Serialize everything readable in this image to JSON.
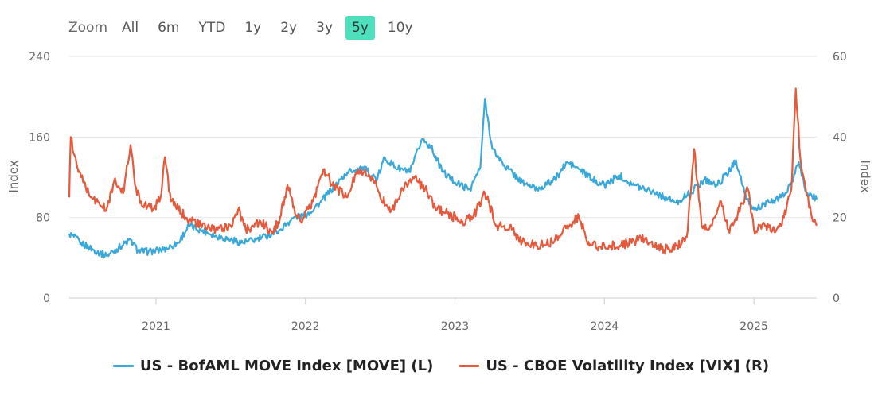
{
  "zoom": {
    "label": "Zoom",
    "buttons": [
      {
        "label": "All",
        "active": false
      },
      {
        "label": "6m",
        "active": false
      },
      {
        "label": "YTD",
        "active": false
      },
      {
        "label": "1y",
        "active": false
      },
      {
        "label": "2y",
        "active": false
      },
      {
        "label": "3y",
        "active": false
      },
      {
        "label": "5y",
        "active": true
      },
      {
        "label": "10y",
        "active": false
      }
    ]
  },
  "chart_data": {
    "type": "line",
    "title": "",
    "xlim": [
      2020.42,
      2025.42
    ],
    "x_ticks": [
      "2021",
      "2022",
      "2023",
      "2024",
      "2025"
    ],
    "y_left": {
      "label": "Index",
      "ylim": [
        0,
        240
      ],
      "ticks": [
        "0",
        "80",
        "160",
        "240"
      ]
    },
    "y_right": {
      "label": "Index",
      "ylim": [
        0,
        60
      ],
      "ticks": [
        "0",
        "20",
        "40",
        "60"
      ]
    },
    "grid": true,
    "legend_position": "bottom",
    "series": [
      {
        "name": "US - BofAML MOVE Index [MOVE] (L)",
        "axis": "left",
        "color": "#3aa8d8",
        "points": [
          [
            2020.42,
            64
          ],
          [
            2020.5,
            55
          ],
          [
            2020.58,
            48
          ],
          [
            2020.67,
            42
          ],
          [
            2020.75,
            50
          ],
          [
            2020.83,
            58
          ],
          [
            2020.88,
            47
          ],
          [
            2020.95,
            46
          ],
          [
            2021.05,
            48
          ],
          [
            2021.15,
            55
          ],
          [
            2021.22,
            72
          ],
          [
            2021.3,
            68
          ],
          [
            2021.4,
            62
          ],
          [
            2021.5,
            58
          ],
          [
            2021.58,
            55
          ],
          [
            2021.67,
            58
          ],
          [
            2021.75,
            62
          ],
          [
            2021.83,
            68
          ],
          [
            2021.92,
            80
          ],
          [
            2022.0,
            82
          ],
          [
            2022.1,
            95
          ],
          [
            2022.2,
            112
          ],
          [
            2022.28,
            125
          ],
          [
            2022.38,
            130
          ],
          [
            2022.48,
            118
          ],
          [
            2022.53,
            140
          ],
          [
            2022.6,
            130
          ],
          [
            2022.7,
            125
          ],
          [
            2022.78,
            158
          ],
          [
            2022.84,
            150
          ],
          [
            2022.92,
            125
          ],
          [
            2023.0,
            115
          ],
          [
            2023.1,
            108
          ],
          [
            2023.17,
            130
          ],
          [
            2023.2,
            198
          ],
          [
            2023.25,
            148
          ],
          [
            2023.33,
            132
          ],
          [
            2023.45,
            115
          ],
          [
            2023.55,
            108
          ],
          [
            2023.67,
            118
          ],
          [
            2023.75,
            135
          ],
          [
            2023.83,
            128
          ],
          [
            2023.92,
            118
          ],
          [
            2024.0,
            112
          ],
          [
            2024.1,
            122
          ],
          [
            2024.2,
            112
          ],
          [
            2024.3,
            108
          ],
          [
            2024.4,
            100
          ],
          [
            2024.48,
            95
          ],
          [
            2024.58,
            105
          ],
          [
            2024.67,
            118
          ],
          [
            2024.75,
            112
          ],
          [
            2024.83,
            125
          ],
          [
            2024.88,
            137
          ],
          [
            2024.95,
            98
          ],
          [
            2025.0,
            88
          ],
          [
            2025.1,
            95
          ],
          [
            2025.18,
            100
          ],
          [
            2025.25,
            112
          ],
          [
            2025.3,
            135
          ],
          [
            2025.35,
            105
          ],
          [
            2025.42,
            98
          ]
        ]
      },
      {
        "name": "US - CBOE Volatility Index [VIX] (R)",
        "axis": "right",
        "color": "#e55a3c",
        "points": [
          [
            2020.42,
            25
          ],
          [
            2020.43,
            40
          ],
          [
            2020.47,
            33
          ],
          [
            2020.5,
            30
          ],
          [
            2020.55,
            26
          ],
          [
            2020.6,
            24
          ],
          [
            2020.67,
            22
          ],
          [
            2020.72,
            29
          ],
          [
            2020.78,
            26
          ],
          [
            2020.83,
            38
          ],
          [
            2020.86,
            28
          ],
          [
            2020.9,
            24
          ],
          [
            2020.98,
            22
          ],
          [
            2021.03,
            25
          ],
          [
            2021.06,
            35
          ],
          [
            2021.1,
            24
          ],
          [
            2021.2,
            20
          ],
          [
            2021.3,
            18
          ],
          [
            2021.4,
            17
          ],
          [
            2021.5,
            18
          ],
          [
            2021.55,
            22
          ],
          [
            2021.6,
            17
          ],
          [
            2021.7,
            19
          ],
          [
            2021.78,
            16
          ],
          [
            2021.83,
            20
          ],
          [
            2021.88,
            28
          ],
          [
            2021.93,
            21
          ],
          [
            2021.97,
            19
          ],
          [
            2022.05,
            24
          ],
          [
            2022.12,
            32
          ],
          [
            2022.18,
            28
          ],
          [
            2022.28,
            25
          ],
          [
            2022.35,
            32
          ],
          [
            2022.45,
            30
          ],
          [
            2022.5,
            25
          ],
          [
            2022.58,
            22
          ],
          [
            2022.65,
            27
          ],
          [
            2022.72,
            30
          ],
          [
            2022.8,
            27
          ],
          [
            2022.88,
            22
          ],
          [
            2022.95,
            21
          ],
          [
            2023.05,
            19
          ],
          [
            2023.12,
            20
          ],
          [
            2023.2,
            26
          ],
          [
            2023.28,
            18
          ],
          [
            2023.38,
            17
          ],
          [
            2023.45,
            14
          ],
          [
            2023.55,
            13
          ],
          [
            2023.65,
            14
          ],
          [
            2023.75,
            18
          ],
          [
            2023.83,
            20
          ],
          [
            2023.9,
            13
          ],
          [
            2024.0,
            13
          ],
          [
            2024.1,
            13
          ],
          [
            2024.2,
            14
          ],
          [
            2024.28,
            15
          ],
          [
            2024.33,
            13
          ],
          [
            2024.4,
            12
          ],
          [
            2024.48,
            13
          ],
          [
            2024.55,
            15
          ],
          [
            2024.6,
            37
          ],
          [
            2024.65,
            18
          ],
          [
            2024.72,
            18
          ],
          [
            2024.78,
            24
          ],
          [
            2024.83,
            17
          ],
          [
            2024.88,
            20
          ],
          [
            2024.96,
            27
          ],
          [
            2025.0,
            17
          ],
          [
            2025.08,
            18
          ],
          [
            2025.15,
            17
          ],
          [
            2025.2,
            20
          ],
          [
            2025.25,
            27
          ],
          [
            2025.28,
            52
          ],
          [
            2025.31,
            35
          ],
          [
            2025.35,
            26
          ],
          [
            2025.4,
            19
          ],
          [
            2025.42,
            18
          ]
        ]
      }
    ]
  }
}
